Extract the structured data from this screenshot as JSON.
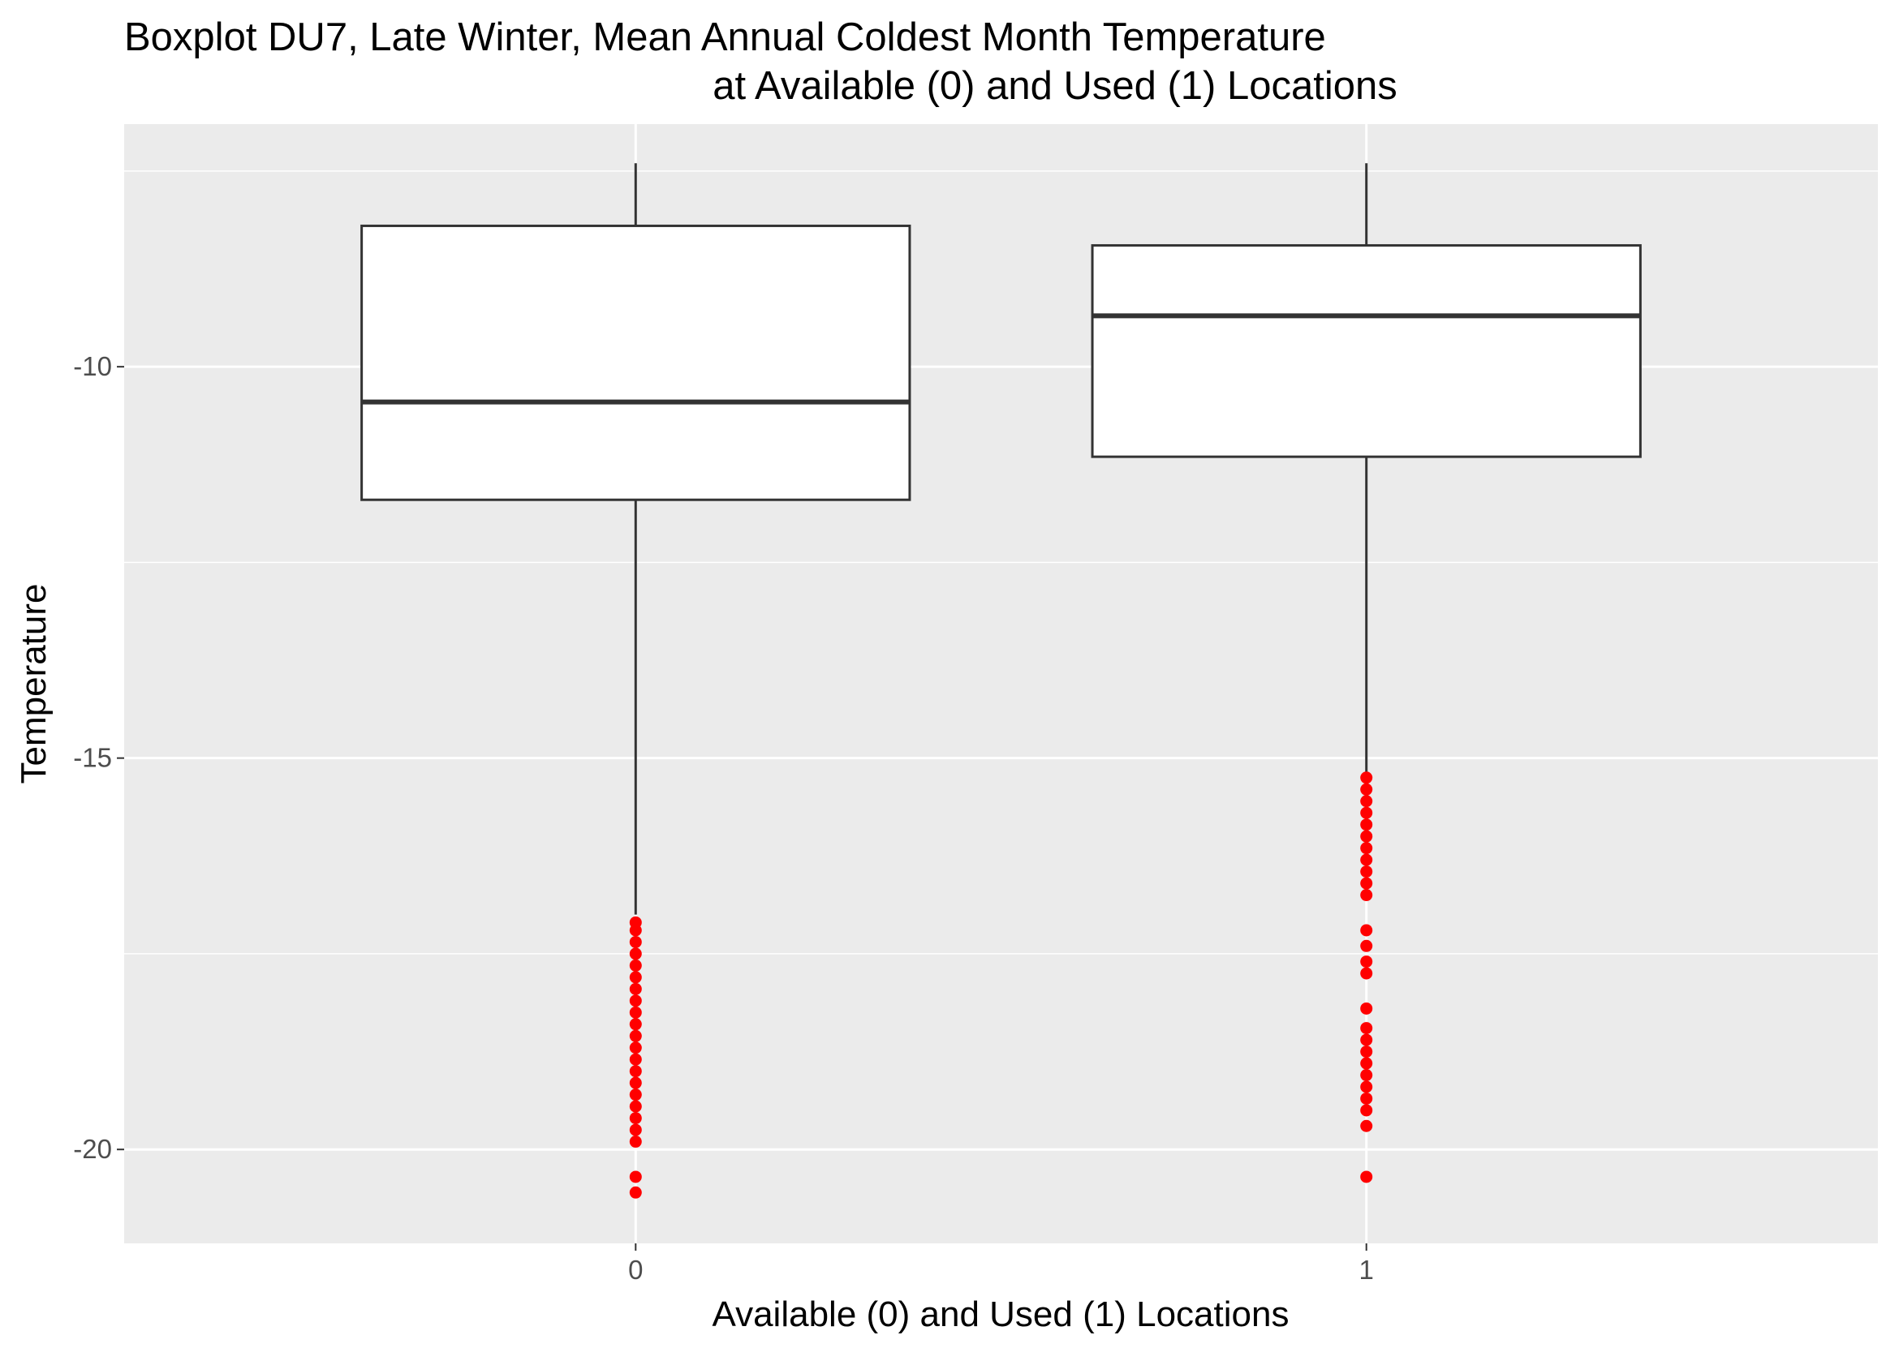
{
  "chart_data": {
    "type": "boxplot",
    "title": "Boxplot DU7, Late Winter, Mean Annual Coldest Month Temperature",
    "subtitle": "at Available (0) and Used (1) Locations",
    "xlabel": "Available (0) and Used (1) Locations",
    "ylabel": "Temperature",
    "categories": [
      "0",
      "1"
    ],
    "ylim": [
      -21.2,
      -6.9
    ],
    "yticks": [
      -10,
      -15,
      -20
    ],
    "y_tick_labels": [
      "-10",
      "-15",
      "-20"
    ],
    "grid": true,
    "boxes": [
      {
        "category": "0",
        "whisker_low": -17.0,
        "q1": -11.7,
        "median": -10.45,
        "q3": -8.2,
        "whisker_high": -7.4,
        "outliers": [
          -17.1,
          -17.2,
          -17.35,
          -17.5,
          -17.65,
          -17.8,
          -17.95,
          -18.1,
          -18.25,
          -18.4,
          -18.55,
          -18.7,
          -18.85,
          -19.0,
          -19.15,
          -19.3,
          -19.45,
          -19.6,
          -19.75,
          -19.9,
          -20.35,
          -20.55
        ]
      },
      {
        "category": "1",
        "whisker_low": -15.2,
        "q1": -11.15,
        "median": -9.35,
        "q3": -8.45,
        "whisker_high": -7.4,
        "outliers": [
          -15.25,
          -15.4,
          -15.55,
          -15.7,
          -15.85,
          -16.0,
          -16.15,
          -16.3,
          -16.45,
          -16.6,
          -16.75,
          -17.2,
          -17.4,
          -17.6,
          -17.75,
          -18.2,
          -18.45,
          -18.6,
          -18.75,
          -18.9,
          -19.05,
          -19.2,
          -19.35,
          -19.5,
          -19.7,
          -20.35
        ]
      }
    ],
    "colors": {
      "panel": "#ebebeb",
      "grid": "#ffffff",
      "box_fill": "#ffffff",
      "box_line": "#333333",
      "outlier": "#ff0000",
      "axis_text": "#4d4d4d"
    }
  }
}
